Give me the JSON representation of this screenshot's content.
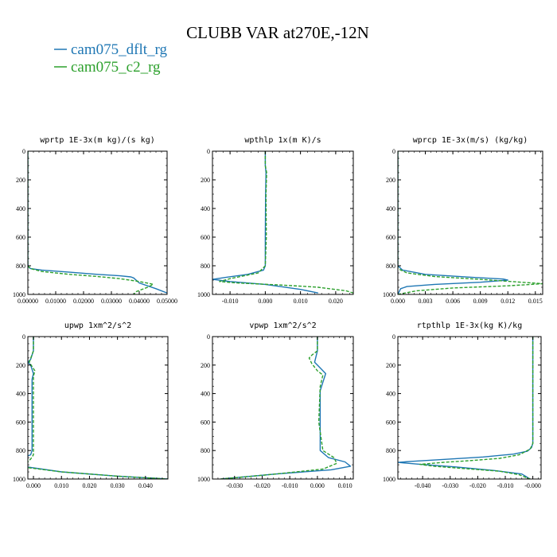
{
  "figure": {
    "title": "CLUBB VAR at270E,-12N",
    "legend": [
      {
        "label": "cam075_dflt_rg",
        "color": "#1f77b4",
        "dash": "solid"
      },
      {
        "label": "cam075_c2_rg",
        "color": "#2ca02c",
        "dash": "dashed"
      }
    ]
  },
  "chart_data": [
    {
      "type": "line",
      "title": "wprtp  1E-3x(m kg)/(s kg)",
      "xlim": [
        0,
        0.05
      ],
      "ylim": [
        0,
        1000
      ],
      "y_inverted": true,
      "xticks": [
        0,
        0.01,
        0.02,
        0.03,
        0.04,
        0.05
      ],
      "xtick_labels": [
        "0.00000",
        "0.01000",
        "0.02000",
        "0.03000",
        "0.04000",
        "0.05000"
      ],
      "yticks": [
        0,
        200,
        400,
        600,
        800,
        1000
      ],
      "series": [
        {
          "name": "cam075_dflt_rg",
          "color": "#1f77b4",
          "dash": "solid",
          "x": [
            0,
            0,
            0.0003,
            0.001,
            0.005,
            0.015,
            0.025,
            0.033,
            0.037,
            0.038,
            0.04,
            0.046,
            0.05
          ],
          "y": [
            0,
            790,
            810,
            820,
            830,
            845,
            860,
            870,
            878,
            885,
            920,
            960,
            990
          ]
        },
        {
          "name": "cam075_c2_rg",
          "color": "#2ca02c",
          "dash": "dashed",
          "x": [
            0,
            0,
            0.001,
            0.005,
            0.015,
            0.025,
            0.033,
            0.04,
            0.044,
            0.045,
            0.043,
            0.039,
            0.038
          ],
          "y": [
            0,
            800,
            820,
            840,
            860,
            875,
            890,
            910,
            925,
            930,
            950,
            980,
            1000
          ]
        }
      ]
    },
    {
      "type": "line",
      "title": "wpthlp  1x(m K)/s",
      "xlim": [
        -0.015,
        0.025
      ],
      "ylim": [
        0,
        1000
      ],
      "y_inverted": true,
      "xticks": [
        -0.01,
        0,
        0.01,
        0.02
      ],
      "xtick_labels": [
        "-0.010",
        "0.000",
        "0.010",
        "0.020"
      ],
      "yticks": [
        0,
        200,
        400,
        600,
        800,
        1000
      ],
      "series": [
        {
          "name": "cam075_dflt_rg",
          "color": "#1f77b4",
          "dash": "solid",
          "x": [
            0,
            0,
            0.0002,
            0.0001,
            0,
            0,
            -0.0005,
            -0.005,
            -0.011,
            -0.015,
            -0.01,
            0,
            0.01,
            0.015
          ],
          "y": [
            0,
            100,
            150,
            300,
            600,
            800,
            830,
            860,
            880,
            895,
            910,
            930,
            965,
            990
          ]
        },
        {
          "name": "cam075_c2_rg",
          "color": "#2ca02c",
          "dash": "dashed",
          "x": [
            0,
            0,
            0.0004,
            0.0002,
            0.0003,
            0,
            -0.002,
            -0.01,
            -0.013,
            -0.008,
            0.005,
            0.015,
            0.023,
            0.025
          ],
          "y": [
            0,
            100,
            150,
            300,
            600,
            800,
            850,
            890,
            910,
            920,
            935,
            950,
            975,
            990
          ]
        }
      ]
    },
    {
      "type": "line",
      "title": "wprcp  1E-3x(m/s) (kg/kg)",
      "xlim": [
        0,
        0.0158
      ],
      "ylim": [
        0,
        1000
      ],
      "y_inverted": true,
      "xticks": [
        0,
        0.003,
        0.006,
        0.009,
        0.012,
        0.015
      ],
      "xtick_labels": [
        "0.000",
        "0.003",
        "0.006",
        "0.009",
        "0.012",
        "0.015"
      ],
      "yticks": [
        0,
        200,
        400,
        600,
        800,
        1000
      ],
      "series": [
        {
          "name": "cam075_dflt_rg",
          "color": "#1f77b4",
          "dash": "solid",
          "x": [
            0,
            0,
            0.0005,
            0.003,
            0.008,
            0.0115,
            0.012,
            0.009,
            0.004,
            0.001,
            0.0003,
            0
          ],
          "y": [
            0,
            800,
            830,
            860,
            880,
            893,
            900,
            915,
            930,
            945,
            960,
            1000
          ]
        },
        {
          "name": "cam075_c2_rg",
          "color": "#2ca02c",
          "dash": "dashed",
          "x": [
            0,
            0,
            0.001,
            0.004,
            0.009,
            0.0135,
            0.0158,
            0.012,
            0.006,
            0.002,
            0
          ],
          "y": [
            0,
            820,
            850,
            875,
            895,
            915,
            925,
            940,
            955,
            975,
            1000
          ]
        }
      ]
    },
    {
      "type": "line",
      "title": "upwp  1xm^2/s^2",
      "xlim": [
        -0.002,
        0.048
      ],
      "ylim": [
        0,
        1000
      ],
      "y_inverted": true,
      "xticks": [
        0,
        0.01,
        0.02,
        0.03,
        0.04
      ],
      "xtick_labels": [
        "0.000",
        "0.010",
        "0.020",
        "0.030",
        "0.040"
      ],
      "yticks": [
        0,
        200,
        400,
        600,
        800,
        1000
      ],
      "series": [
        {
          "name": "cam075_dflt_rg",
          "color": "#1f77b4",
          "dash": "solid",
          "x": [
            0,
            0,
            -0.001,
            -0.002,
            -0.001,
            0,
            -0.0005,
            -0.0005,
            -0.0005,
            -0.001,
            -0.005,
            -0.008,
            -0.004,
            0.01,
            0.03,
            0.048
          ],
          "y": [
            0,
            100,
            160,
            180,
            200,
            260,
            300,
            600,
            800,
            830,
            860,
            885,
            910,
            950,
            980,
            1000
          ]
        },
        {
          "name": "cam075_c2_rg",
          "color": "#2ca02c",
          "dash": "dashed",
          "x": [
            0,
            0,
            -0.0015,
            -0.0005,
            0.0005,
            0,
            0,
            0,
            -0.001,
            -0.003,
            -0.002,
            0.01,
            0.03,
            0.048
          ],
          "y": [
            0,
            100,
            180,
            210,
            240,
            280,
            600,
            830,
            860,
            900,
            920,
            950,
            980,
            1000
          ]
        }
      ]
    },
    {
      "type": "line",
      "title": "vpwp  1xm^2/s^2",
      "xlim": [
        -0.038,
        0.013
      ],
      "ylim": [
        0,
        1000
      ],
      "y_inverted": true,
      "xticks": [
        -0.03,
        -0.02,
        -0.01,
        0,
        0.01
      ],
      "xtick_labels": [
        "-0.030",
        "-0.020",
        "-0.010",
        "0.000",
        "0.010"
      ],
      "yticks": [
        0,
        200,
        400,
        600,
        800,
        1000
      ],
      "series": [
        {
          "name": "cam075_dflt_rg",
          "color": "#1f77b4",
          "dash": "solid",
          "x": [
            0,
            0,
            -0.001,
            0.001,
            0.003,
            0.002,
            0.001,
            0.001,
            0.001,
            0.004,
            0.01,
            0.012,
            0.005,
            -0.015,
            -0.035
          ],
          "y": [
            0,
            100,
            180,
            220,
            260,
            320,
            380,
            600,
            800,
            850,
            880,
            910,
            935,
            965,
            1000
          ]
        },
        {
          "name": "cam075_c2_rg",
          "color": "#2ca02c",
          "dash": "dashed",
          "x": [
            0,
            0,
            -0.002,
            -0.003,
            -0.002,
            0,
            0.002,
            0.001,
            0.0005,
            0.002,
            0.006,
            0.007,
            0.002,
            -0.015,
            -0.035
          ],
          "y": [
            0,
            100,
            130,
            150,
            190,
            240,
            270,
            350,
            600,
            800,
            850,
            890,
            930,
            965,
            1000
          ]
        }
      ]
    },
    {
      "type": "line",
      "title": "rtpthlp  1E-3x(kg K)/kg",
      "xlim": [
        -0.049,
        0.003
      ],
      "ylim": [
        0,
        1000
      ],
      "y_inverted": true,
      "xticks": [
        -0.04,
        -0.03,
        -0.02,
        -0.01,
        0
      ],
      "xtick_labels": [
        "-0.040",
        "-0.030",
        "-0.020",
        "-0.010",
        "-0.000"
      ],
      "yticks": [
        0,
        200,
        400,
        600,
        800,
        1000
      ],
      "series": [
        {
          "name": "cam075_dflt_rg",
          "color": "#1f77b4",
          "dash": "solid",
          "x": [
            0,
            0,
            -0.0005,
            -0.002,
            -0.007,
            -0.018,
            -0.032,
            -0.044,
            -0.049,
            -0.042,
            -0.028,
            -0.014,
            -0.004,
            -0.001
          ],
          "y": [
            0,
            750,
            780,
            805,
            825,
            845,
            862,
            876,
            883,
            895,
            915,
            940,
            965,
            1000
          ]
        },
        {
          "name": "cam075_c2_rg",
          "color": "#2ca02c",
          "dash": "dashed",
          "x": [
            0,
            0,
            -0.001,
            -0.005,
            -0.012,
            -0.022,
            -0.032,
            -0.041,
            -0.036,
            -0.024,
            -0.012,
            -0.005,
            -0.001
          ],
          "y": [
            0,
            750,
            790,
            830,
            855,
            870,
            882,
            897,
            910,
            928,
            945,
            970,
            1000
          ]
        }
      ]
    }
  ]
}
